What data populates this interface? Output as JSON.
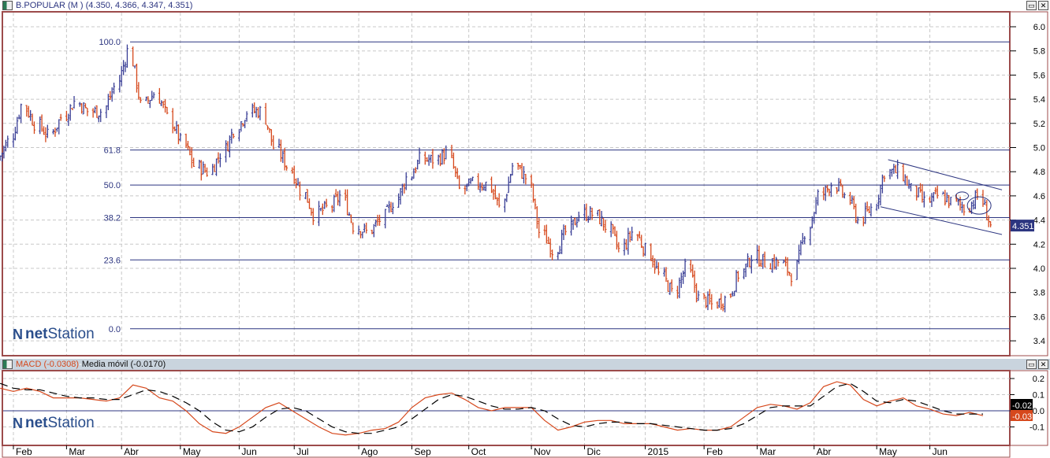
{
  "header": {
    "title": "B.POPULAR (M )",
    "ohlc": "(4.350, 4.366, 4.347, 4.351)"
  },
  "macd_header": {
    "macd": "MACD (-0.0308)",
    "sep": " - ",
    "signal": "Media móvil (-0.0170)"
  },
  "logo": {
    "brand_bold": "net",
    "brand": "Station"
  },
  "colors": {
    "up": "#3a3f96",
    "down": "#d6481c",
    "frame": "#9c4b4b",
    "fib": "#2c3580",
    "macd": "#d6481c",
    "signal": "#000000"
  },
  "chart_data": [
    {
      "type": "ohlc",
      "title": "B.POPULAR (M )",
      "last_price": "4.351",
      "y_ticks": [
        "6.0",
        "5.8",
        "5.6",
        "5.4",
        "5.2",
        "5.0",
        "4.8",
        "4.6",
        "4.4",
        "4.2",
        "4.0",
        "3.8",
        "3.6",
        "3.4"
      ],
      "ylim": [
        3.3,
        6.1
      ],
      "grid": true,
      "x_ticks": [
        {
          "label": "Feb",
          "date": "2014-02-03"
        },
        {
          "label": "Mar",
          "date": "2014-03-03"
        },
        {
          "label": "Abr",
          "date": "2014-04-01"
        },
        {
          "label": "May",
          "date": "2014-05-02"
        },
        {
          "label": "Jun",
          "date": "2014-06-02"
        },
        {
          "label": "Jul",
          "date": "2014-07-01"
        },
        {
          "label": "Ago",
          "date": "2014-08-04"
        },
        {
          "label": "Sep",
          "date": "2014-09-01"
        },
        {
          "label": "Oct",
          "date": "2014-10-01"
        },
        {
          "label": "Nov",
          "date": "2014-11-03"
        },
        {
          "label": "Dic",
          "date": "2014-12-01"
        },
        {
          "label": "2015",
          "date": "2015-01-02"
        },
        {
          "label": "Feb",
          "date": "2015-02-02"
        },
        {
          "label": "Mar",
          "date": "2015-03-02"
        },
        {
          "label": "Abr",
          "date": "2015-04-01"
        },
        {
          "label": "May",
          "date": "2015-05-04"
        },
        {
          "label": "Jun",
          "date": "2015-06-01"
        }
      ],
      "fib_levels": [
        {
          "label": "100.0",
          "price": 5.875
        },
        {
          "label": "61.8",
          "price": 4.98
        },
        {
          "label": "50.0",
          "price": 4.69
        },
        {
          "label": "38.2",
          "price": 4.42
        },
        {
          "label": "23.6",
          "price": 4.07
        },
        {
          "label": "0.0",
          "price": 3.5
        }
      ],
      "weekly_start": "2014-01-27",
      "weekly_close": [
        4.9,
        5.05,
        5.35,
        5.2,
        5.1,
        5.25,
        5.38,
        5.3,
        5.3,
        5.5,
        5.8,
        5.35,
        5.45,
        5.25,
        5.05,
        4.85,
        4.8,
        4.95,
        5.15,
        5.3,
        5.3,
        5.0,
        4.85,
        4.65,
        4.45,
        4.5,
        4.6,
        4.35,
        4.3,
        4.4,
        4.55,
        4.75,
        4.9,
        4.9,
        4.95,
        4.65,
        4.7,
        4.7,
        4.5,
        4.85,
        4.75,
        4.3,
        4.15,
        4.3,
        4.45,
        4.45,
        4.35,
        4.15,
        4.3,
        4.15,
        3.95,
        3.8,
        4.0,
        3.75,
        3.7,
        3.75,
        3.95,
        4.1,
        4.05,
        4.05,
        3.95,
        4.3,
        4.6,
        4.7,
        4.6,
        4.4,
        4.5,
        4.8,
        4.8,
        4.65,
        4.55,
        4.6,
        4.55,
        4.5,
        4.6,
        4.351
      ],
      "trendlines": [
        {
          "from": [
            "2015-05-10",
            4.9
          ],
          "to": [
            "2015-07-09",
            4.65
          ]
        },
        {
          "from": [
            "2015-05-06",
            4.51
          ],
          "to": [
            "2015-07-09",
            4.28
          ]
        }
      ],
      "ellipses": [
        {
          "date": "2015-06-18",
          "price": 4.6
        },
        {
          "date": "2015-06-27",
          "price": 4.52
        }
      ]
    },
    {
      "type": "line",
      "y_ticks": [
        "0.2",
        "0.1",
        "0.0",
        "-0.1"
      ],
      "ylim": [
        -0.2,
        0.25
      ],
      "series": [
        {
          "name": "MACD (-0.0308)",
          "last": "-0.03",
          "values": [
            0.14,
            0.12,
            0.14,
            0.12,
            0.08,
            0.08,
            0.08,
            0.07,
            0.06,
            0.08,
            0.16,
            0.14,
            0.08,
            0.06,
            0.0,
            -0.08,
            -0.13,
            -0.14,
            -0.1,
            -0.04,
            0.02,
            0.05,
            0.0,
            -0.05,
            -0.1,
            -0.14,
            -0.15,
            -0.14,
            -0.12,
            -0.11,
            -0.07,
            0.02,
            0.08,
            0.1,
            0.11,
            0.07,
            0.02,
            0.0,
            0.02,
            0.02,
            0.02,
            -0.06,
            -0.12,
            -0.1,
            -0.07,
            -0.06,
            -0.06,
            -0.08,
            -0.08,
            -0.08,
            -0.1,
            -0.12,
            -0.11,
            -0.12,
            -0.12,
            -0.1,
            -0.04,
            0.02,
            0.04,
            0.03,
            0.01,
            0.05,
            0.15,
            0.18,
            0.16,
            0.07,
            0.03,
            0.06,
            0.08,
            0.03,
            0.01,
            -0.02,
            -0.03,
            -0.01,
            -0.03
          ]
        },
        {
          "name": "Media móvil (-0.0170)",
          "last": "-0.02",
          "values": [
            0.17,
            0.14,
            0.13,
            0.13,
            0.11,
            0.09,
            0.08,
            0.08,
            0.07,
            0.07,
            0.1,
            0.13,
            0.12,
            0.09,
            0.05,
            0.0,
            -0.07,
            -0.12,
            -0.13,
            -0.1,
            -0.04,
            0.01,
            0.02,
            0.0,
            -0.05,
            -0.1,
            -0.13,
            -0.14,
            -0.14,
            -0.12,
            -0.1,
            -0.05,
            0.01,
            0.07,
            0.1,
            0.09,
            0.06,
            0.03,
            0.01,
            0.01,
            0.02,
            0.0,
            -0.05,
            -0.09,
            -0.1,
            -0.08,
            -0.07,
            -0.07,
            -0.08,
            -0.08,
            -0.09,
            -0.1,
            -0.11,
            -0.12,
            -0.12,
            -0.11,
            -0.08,
            -0.03,
            0.02,
            0.03,
            0.03,
            0.03,
            0.09,
            0.15,
            0.17,
            0.12,
            0.06,
            0.05,
            0.07,
            0.06,
            0.03,
            0.0,
            -0.02,
            -0.02,
            -0.02
          ]
        }
      ]
    }
  ]
}
